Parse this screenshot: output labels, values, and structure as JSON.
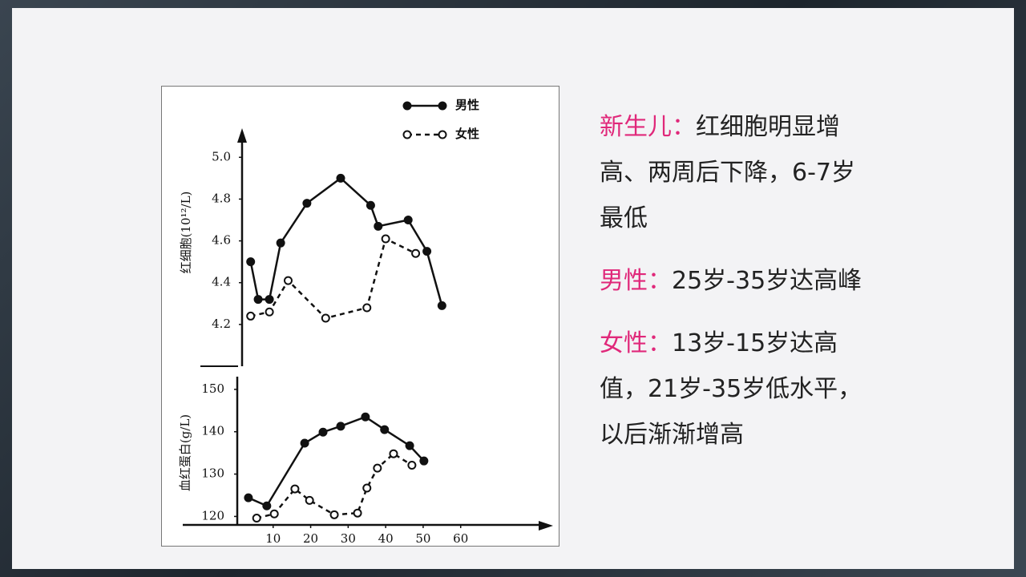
{
  "chart_data": [
    {
      "type": "line",
      "ylabel": "红细胞(10¹²/L)",
      "xlim": [
        0,
        84
      ],
      "ylim": [
        4.0,
        5.12
      ],
      "yticks": [
        {
          "value": 5,
          "label": "5.0"
        },
        4.8,
        4.6,
        4.4,
        4.2
      ],
      "legend": "top-right",
      "series": [
        {
          "name": "男性",
          "color": "#111111",
          "style": "solid",
          "marker": "filled",
          "x": [
            4,
            6,
            9,
            12,
            19,
            28,
            36,
            38,
            46,
            51,
            55
          ],
          "values": [
            4.5,
            4.32,
            4.32,
            4.59,
            4.78,
            4.9,
            4.77,
            4.67,
            4.7,
            4.55,
            4.29
          ]
        },
        {
          "name": "女性",
          "color": "#111111",
          "style": "dashed",
          "marker": "open",
          "x": [
            4,
            9,
            14,
            24,
            35,
            40,
            48
          ],
          "values": [
            4.24,
            4.26,
            4.41,
            4.23,
            4.28,
            4.61,
            4.54
          ]
        }
      ]
    },
    {
      "type": "line",
      "ylabel": "血红蛋白(g/L)",
      "xlim": [
        0,
        84
      ],
      "ylim": [
        118,
        153
      ],
      "yticks": [
        150,
        140,
        130,
        120
      ],
      "xticks": [
        10,
        20,
        30,
        40,
        50,
        60
      ],
      "series": [
        {
          "color": "#111111",
          "style": "solid",
          "marker": "filled",
          "x": [
            3.4,
            8.3,
            18.4,
            23.3,
            28,
            34.6,
            39.7,
            46.4,
            50.2
          ],
          "values": [
            124.4,
            122.5,
            137.3,
            139.9,
            141.3,
            143.5,
            140.5,
            136.7,
            133.1
          ]
        },
        {
          "color": "#111111",
          "style": "dashed",
          "marker": "open",
          "x": [
            5.6,
            10.3,
            15.8,
            19.7,
            26.3,
            32.5,
            35,
            37.8,
            42.1,
            47
          ],
          "values": [
            119.6,
            120.6,
            126.5,
            123.8,
            120.4,
            120.8,
            126.7,
            131.4,
            134.8,
            132.1
          ]
        }
      ]
    }
  ],
  "notes": [
    {
      "label": "新生儿：",
      "text": "红细胞明显增高、两周后下降，6-7岁最低"
    },
    {
      "label": "男性：",
      "text": "25岁-35岁达高峰"
    },
    {
      "label": "女性：",
      "text": "13岁-15岁达高值，21岁-35岁低水平，以后渐渐增高"
    }
  ]
}
